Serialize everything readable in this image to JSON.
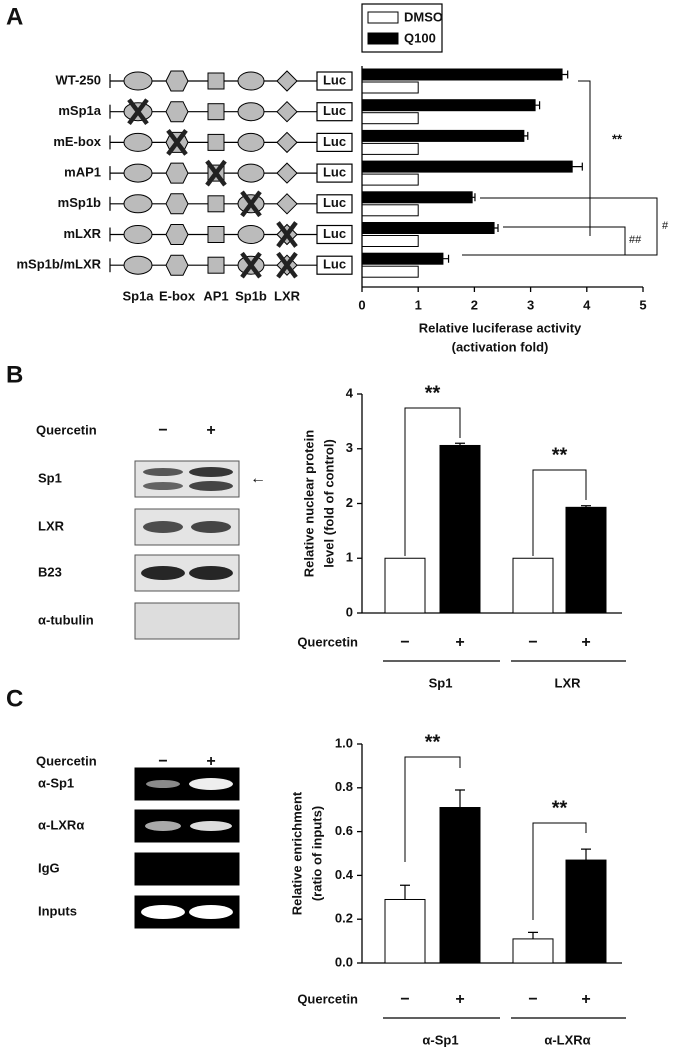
{
  "panels": [
    "A",
    "B",
    "C"
  ],
  "panel_a_constructs": {
    "elements": [
      "Sp1a",
      "E-box",
      "AP1",
      "Sp1b",
      "LXR"
    ],
    "reporter": "Luc"
  },
  "panel_b_blot": {
    "row_label": "Quercetin",
    "lanes": [
      "−",
      "+"
    ],
    "rows": [
      "Sp1",
      "LXR",
      "B23",
      "α-tubulin"
    ]
  },
  "panel_c_gel": {
    "row_label": "Quercetin",
    "lanes": [
      "−",
      "+"
    ],
    "rows": [
      "α-Sp1",
      "α-LXRα",
      "IgG",
      "Inputs"
    ]
  },
  "chart_data": [
    {
      "type": "hbar",
      "x_label": [
        "Relative luciferase activity",
        "(activation fold)"
      ],
      "categories": [
        "WT-250",
        "mSp1a",
        "mE-box",
        "mAP1",
        "mSp1b",
        "mLXR",
        "mSp1b/mLXR"
      ],
      "series": [
        {
          "name": "DMSO",
          "color": "#ffffff",
          "values": [
            1,
            1,
            1,
            1,
            1,
            1,
            1
          ]
        },
        {
          "name": "Q100",
          "color": "#000000",
          "values": [
            3.56,
            3.08,
            2.88,
            3.74,
            1.96,
            2.35,
            1.44
          ],
          "errors": [
            0.1,
            0.08,
            0.07,
            0.18,
            0.05,
            0.07,
            0.1
          ]
        }
      ],
      "xlim": [
        0,
        5
      ],
      "xticks": [
        0,
        1,
        2,
        3,
        4,
        5
      ],
      "annotations": [
        "**",
        "#",
        "##"
      ]
    },
    {
      "type": "bar",
      "y_label": [
        "Relative nuclear protein",
        "level (fold of control)"
      ],
      "row_label": "Quercetin",
      "categories": [
        "Sp1",
        "LXR"
      ],
      "series": [
        {
          "name": "−",
          "color": "#ffffff",
          "values": [
            1,
            1
          ]
        },
        {
          "name": "+",
          "color": "#000000",
          "values": [
            3.06,
            1.93
          ],
          "errors": [
            0.04,
            0.03
          ]
        }
      ],
      "ylim": [
        0,
        4
      ],
      "yticks": [
        0,
        1,
        2,
        3,
        4
      ],
      "annotations": [
        "**",
        "**"
      ]
    },
    {
      "type": "bar",
      "y_label": [
        "Relative enrichment",
        "(ratio of inputs)"
      ],
      "row_label": "Quercetin",
      "categories": [
        "α-Sp1",
        "α-LXRα"
      ],
      "series": [
        {
          "name": "−",
          "color": "#ffffff",
          "values": [
            0.29,
            0.11
          ],
          "errors": [
            0.065,
            0.03
          ]
        },
        {
          "name": "+",
          "color": "#000000",
          "values": [
            0.71,
            0.47
          ],
          "errors": [
            0.08,
            0.05
          ]
        }
      ],
      "ylim": [
        0,
        1
      ],
      "yticks": [
        {
          "value": 0,
          "label": "0.0"
        },
        0.2,
        0.4,
        0.6,
        0.8,
        {
          "value": 1,
          "label": "1.0"
        }
      ],
      "annotations": [
        "**",
        "**"
      ]
    }
  ]
}
